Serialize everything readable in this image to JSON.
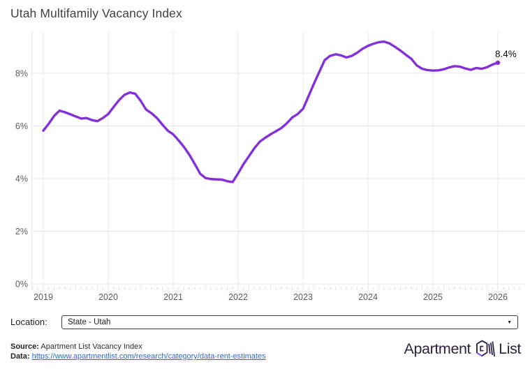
{
  "title": "Utah Multifamily Vacancy Index",
  "chart_data": {
    "type": "line",
    "series_name": "Utah multifamily vacancy index",
    "frequency": "monthly",
    "x_start": "2019-01",
    "x_end": "2026-01",
    "unit": "%",
    "x_tick_labels": [
      "2019",
      "2020",
      "2021",
      "2022",
      "2023",
      "2024",
      "2025",
      "2026"
    ],
    "y_ticks": [
      0,
      2,
      4,
      6,
      8
    ],
    "y_tick_labels": [
      "0%",
      "2%",
      "4%",
      "6%",
      "8%"
    ],
    "ylim": [
      0,
      9.7
    ],
    "grid": true,
    "legend": "none",
    "end_label": "8.4%",
    "line_color": "#8430d8",
    "values": [
      5.82,
      6.08,
      6.38,
      6.58,
      6.52,
      6.44,
      6.36,
      6.28,
      6.3,
      6.22,
      6.18,
      6.3,
      6.45,
      6.72,
      6.98,
      7.18,
      7.27,
      7.22,
      6.95,
      6.62,
      6.48,
      6.3,
      6.05,
      5.82,
      5.68,
      5.45,
      5.2,
      4.9,
      4.55,
      4.18,
      4.02,
      3.98,
      3.97,
      3.96,
      3.9,
      3.87,
      4.2,
      4.55,
      4.85,
      5.15,
      5.4,
      5.55,
      5.68,
      5.8,
      5.92,
      6.1,
      6.32,
      6.45,
      6.65,
      7.12,
      7.6,
      8.05,
      8.5,
      8.66,
      8.72,
      8.68,
      8.6,
      8.66,
      8.78,
      8.93,
      9.04,
      9.12,
      9.18,
      9.2,
      9.13,
      9.0,
      8.86,
      8.7,
      8.55,
      8.3,
      8.17,
      8.12,
      8.1,
      8.11,
      8.15,
      8.22,
      8.27,
      8.25,
      8.18,
      8.13,
      8.2,
      8.17,
      8.23,
      8.33,
      8.4
    ]
  },
  "location_bar": {
    "label": "Location:",
    "selected": "State - Utah"
  },
  "footer": {
    "source_label": "Source:",
    "source_text": "Apartment List Vacancy Index",
    "data_label": "Data:",
    "data_url": "https://www.apartmentlist.com/research/category/data-rent-estimates"
  },
  "logo": {
    "text_left": "Apartment",
    "text_right": "List"
  },
  "colors": {
    "line": "#8430d8",
    "grid": "#e8e8e8",
    "minor_tick": "#d8d8d8",
    "axis_label": "#5c5c5c",
    "title": "#414141",
    "link": "#2a6bd4",
    "logo_dark": "#2c2240",
    "logo_accent": "#8b55f2"
  }
}
